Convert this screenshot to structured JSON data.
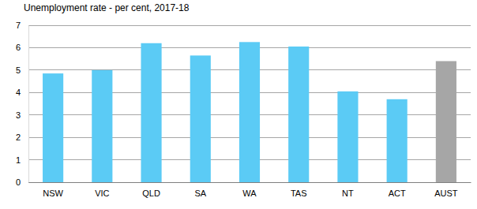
{
  "chart_data": {
    "type": "bar",
    "title": "Unemployment rate - per cent, 2017-18",
    "categories": [
      "NSW",
      "VIC",
      "QLD",
      "SA",
      "WA",
      "TAS",
      "NT",
      "ACT",
      "AUST"
    ],
    "values": [
      4.85,
      5.0,
      6.2,
      5.65,
      6.25,
      6.05,
      4.05,
      3.7,
      5.4
    ],
    "colors": [
      "#5bcbf5",
      "#5bcbf5",
      "#5bcbf5",
      "#5bcbf5",
      "#5bcbf5",
      "#5bcbf5",
      "#5bcbf5",
      "#5bcbf5",
      "#a6a6a6"
    ],
    "ylim": [
      0,
      7
    ],
    "yticks": [
      0,
      1,
      2,
      3,
      4,
      5,
      6,
      7
    ],
    "grid": true
  }
}
